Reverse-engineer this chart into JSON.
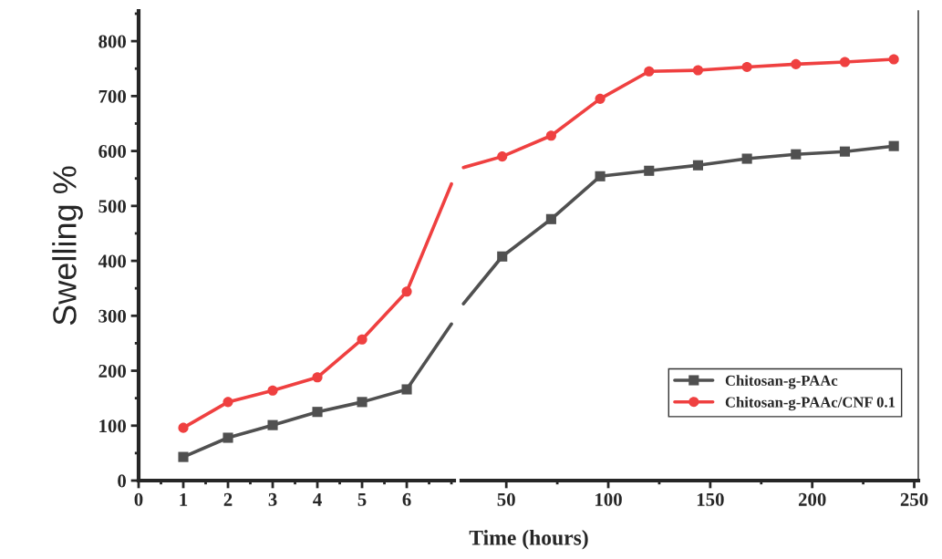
{
  "chart_data": [
    {
      "type": "line",
      "ylabel": "Swelling %",
      "xlim": [
        0,
        7.06
      ],
      "xticks": [
        0,
        1,
        2,
        3,
        4,
        5,
        6
      ],
      "ylim": [
        0,
        855
      ],
      "yticks": [
        0,
        100,
        200,
        300,
        400,
        500,
        600,
        700,
        800
      ],
      "legend": false,
      "grid": false,
      "series": [
        {
          "color": "#505050",
          "marker": "square",
          "x": [
            1,
            2,
            3,
            4,
            5,
            6,
            7
          ],
          "values": [
            43,
            78,
            101,
            125,
            143,
            166,
            285
          ]
        },
        {
          "color": "#ef4040",
          "marker": "circle",
          "x": [
            1,
            2,
            3,
            4,
            5,
            6,
            7
          ],
          "values": [
            96,
            143,
            164,
            188,
            257,
            344,
            540
          ]
        }
      ]
    },
    {
      "type": "line",
      "xlabel": "Time (hours)",
      "xlim": [
        28,
        252
      ],
      "xticks": [
        50,
        100,
        150,
        200,
        250
      ],
      "ylim": [
        0,
        855
      ],
      "yticks": [
        0,
        100,
        200,
        300,
        400,
        500,
        600,
        700,
        800
      ],
      "tick_labels": "x",
      "legend": "bottom right",
      "grid": false,
      "series": [
        {
          "name": "Chitosan-g-PAAc",
          "color": "#505050",
          "marker": "square",
          "x": [
            29,
            48,
            72,
            96,
            120,
            144,
            168,
            192,
            216,
            240
          ],
          "values": [
            322,
            408,
            476,
            554,
            564,
            574,
            586,
            594,
            599,
            609
          ]
        },
        {
          "name": "Chitosan-g-PAAc/CNF 0.1",
          "color": "#ef4040",
          "marker": "circle",
          "x": [
            29,
            48,
            72,
            96,
            120,
            144,
            168,
            192,
            216,
            240
          ],
          "values": [
            570,
            590,
            628,
            695,
            745,
            747,
            753,
            758,
            762,
            767
          ]
        }
      ]
    }
  ]
}
